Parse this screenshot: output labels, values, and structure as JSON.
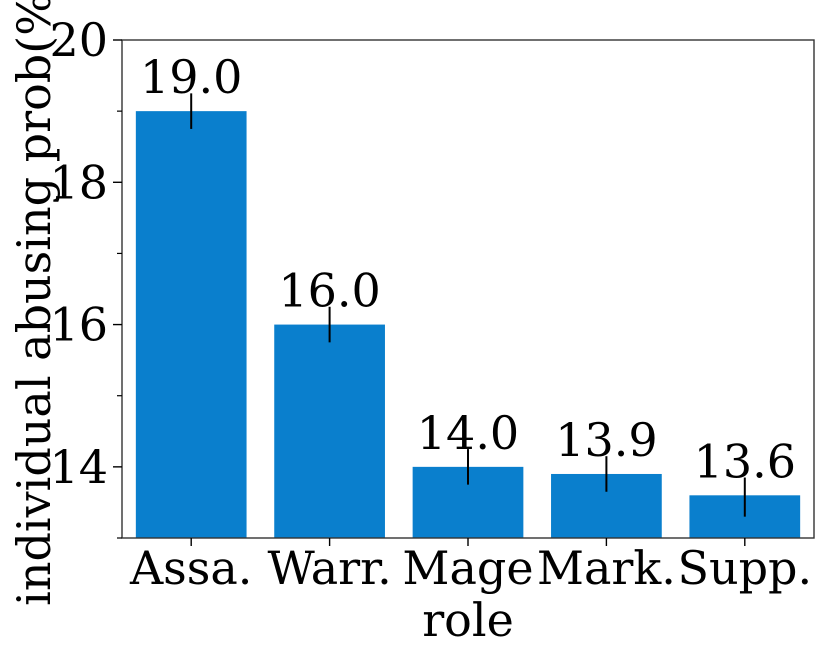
{
  "chart_data": {
    "type": "bar",
    "title": "",
    "xlabel": "role",
    "ylabel": "individual abusing prob(%)",
    "categories": [
      "Assa.",
      "Warr.",
      "Mage",
      "Mark.",
      "Supp."
    ],
    "values": [
      19.0,
      16.0,
      14.0,
      13.9,
      13.6
    ],
    "value_labels": [
      "19.0",
      "16.0",
      "14.0",
      "13.9",
      "13.6"
    ],
    "error_bars": [
      [
        18.75,
        19.25
      ],
      [
        15.75,
        16.25
      ],
      [
        13.75,
        14.25
      ],
      [
        13.65,
        14.15
      ],
      [
        13.3,
        13.85
      ]
    ],
    "ylim": [
      13,
      20
    ],
    "y_major_ticks": [
      14,
      16,
      18,
      20
    ],
    "y_minor_ticks": [
      13,
      15,
      17,
      19
    ],
    "y_tick_labels": [
      "14",
      "16",
      "18",
      "20"
    ],
    "grid": false,
    "bar_color": "#0a7fcd",
    "error_color": "#000000"
  }
}
